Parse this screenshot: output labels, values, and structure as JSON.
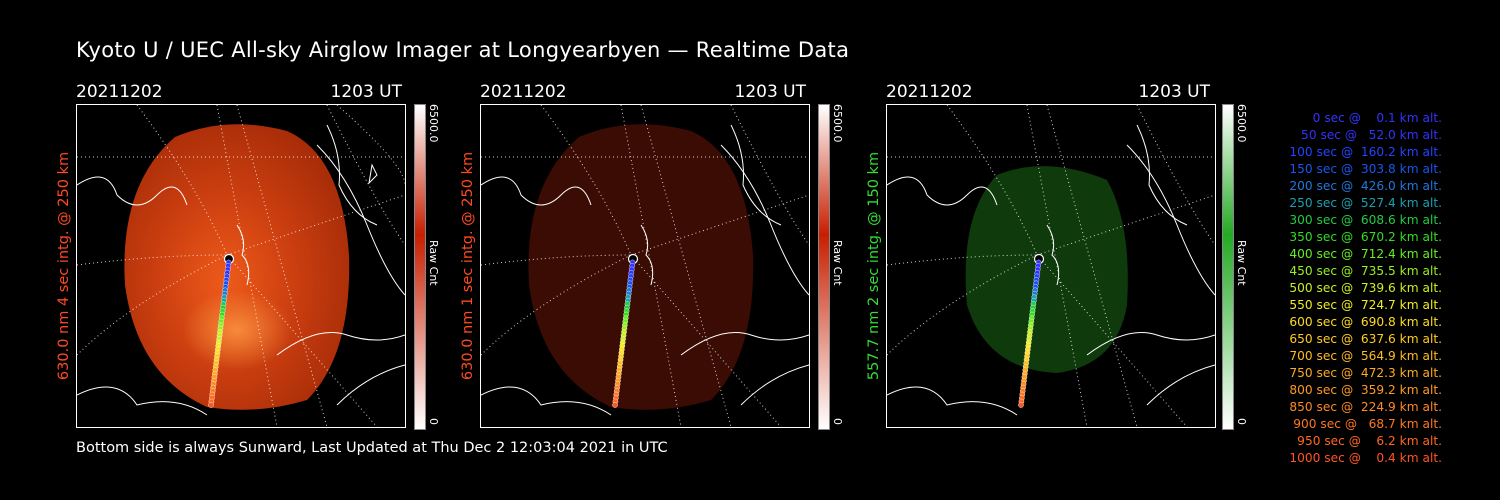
{
  "title": "Kyoto U / UEC All-sky Airglow Imager at Longyearbyen — Realtime Data",
  "footer": "Bottom side is always Sunward, Last Updated at Thu Dec  2 12:03:04 2021 in UTC",
  "panels": [
    {
      "date": "20211202",
      "time": "1203 UT",
      "label": "630.0 nm 4 sec intg. @ 250 km",
      "label_color": "#ff4a20",
      "cbar_max": "6500.0",
      "cbar_min": "0",
      "cbar_unit": "Raw Cnt",
      "cbar_color": "#c81e00"
    },
    {
      "date": "20211202",
      "time": "1203 UT",
      "label": "630.0 nm 1 sec intg. @ 250 km",
      "label_color": "#ff4a20",
      "cbar_max": "6500.0",
      "cbar_min": "0",
      "cbar_unit": "Raw Cnt",
      "cbar_color": "#c81e00"
    },
    {
      "date": "20211202",
      "time": "1203 UT",
      "label": "557.7 nm 2 sec intg. @ 150 km",
      "label_color": "#33dd33",
      "cbar_max": "6500.0",
      "cbar_min": "0",
      "cbar_unit": "Raw Cnt",
      "cbar_color": "#22aa22"
    }
  ],
  "legend": [
    {
      "text": "   0 sec @    0.1 km alt.",
      "color": "#3333ff"
    },
    {
      "text": "  50 sec @   52.0 km alt.",
      "color": "#3333ff"
    },
    {
      "text": " 100 sec @  160.2 km alt.",
      "color": "#2244ff"
    },
    {
      "text": " 150 sec @  303.8 km alt.",
      "color": "#1a55ee"
    },
    {
      "text": " 200 sec @  426.0 km alt.",
      "color": "#2277dd"
    },
    {
      "text": " 250 sec @  527.4 km alt.",
      "color": "#1aa0b0"
    },
    {
      "text": " 300 sec @  608.6 km alt.",
      "color": "#22cc44"
    },
    {
      "text": " 350 sec @  670.2 km alt.",
      "color": "#33dd22"
    },
    {
      "text": " 400 sec @  712.4 km alt.",
      "color": "#66ee22"
    },
    {
      "text": " 450 sec @  735.5 km alt.",
      "color": "#99ee22"
    },
    {
      "text": " 500 sec @  739.6 km alt.",
      "color": "#ccee22"
    },
    {
      "text": " 550 sec @  724.7 km alt.",
      "color": "#eeee22"
    },
    {
      "text": " 600 sec @  690.8 km alt.",
      "color": "#ffdd22"
    },
    {
      "text": " 650 sec @  637.6 km alt.",
      "color": "#ffcc22"
    },
    {
      "text": " 700 sec @  564.9 km alt.",
      "color": "#ffbb22"
    },
    {
      "text": " 750 sec @  472.3 km alt.",
      "color": "#ffaa22"
    },
    {
      "text": " 800 sec @  359.2 km alt.",
      "color": "#ff9922"
    },
    {
      "text": " 850 sec @  224.9 km alt.",
      "color": "#ff8822"
    },
    {
      "text": " 900 sec @   68.7 km alt.",
      "color": "#ff7722"
    },
    {
      "text": " 950 sec @    6.2 km alt.",
      "color": "#ff6622"
    },
    {
      "text": "1000 sec @    0.4 km alt.",
      "color": "#ff5522"
    }
  ]
}
